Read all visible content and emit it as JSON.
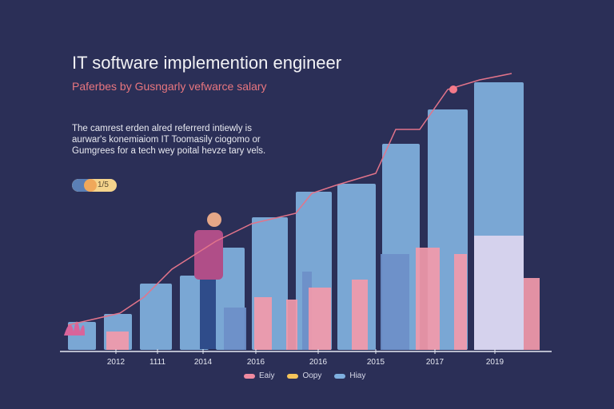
{
  "header": {
    "title": "IT software implemention engineer",
    "subtitle": "Paferbes by Gusngarly vefwarce salary",
    "description": [
      "The camrest erden alred referrerd intiewly is",
      "aurwar's konemiaiom IT Toomasily ciogomo or",
      "Gumgrees for a tech wey poital hevze tary vels."
    ],
    "pill_label": "1/5"
  },
  "chart_data": {
    "type": "bar",
    "title": "IT software implemention engineer",
    "xlabel": "",
    "ylabel": "",
    "categories": [
      "2012",
      "1111",
      "2014",
      "2016",
      "2016",
      "2015",
      "2017",
      "2019"
    ],
    "bars": [
      35,
      45,
      83,
      93,
      128,
      166,
      198,
      208,
      258,
      301,
      335
    ],
    "line": [
      33,
      48,
      68,
      103,
      138,
      160,
      173,
      198,
      208,
      223,
      278,
      278,
      328,
      340,
      348
    ],
    "highlight_index": 12,
    "legend": [
      {
        "label": "Eaiy",
        "color": "#f08aa0"
      },
      {
        "label": "Oopy",
        "color": "#f5c45a"
      },
      {
        "label": "Hiay",
        "color": "#7fb0e0"
      }
    ],
    "colors": {
      "bar": "#7aa7d4",
      "line": "#e2748a",
      "building": "#f29aaa",
      "dot": "#f47a8a"
    },
    "grid": false,
    "legend_position": "bottom"
  }
}
